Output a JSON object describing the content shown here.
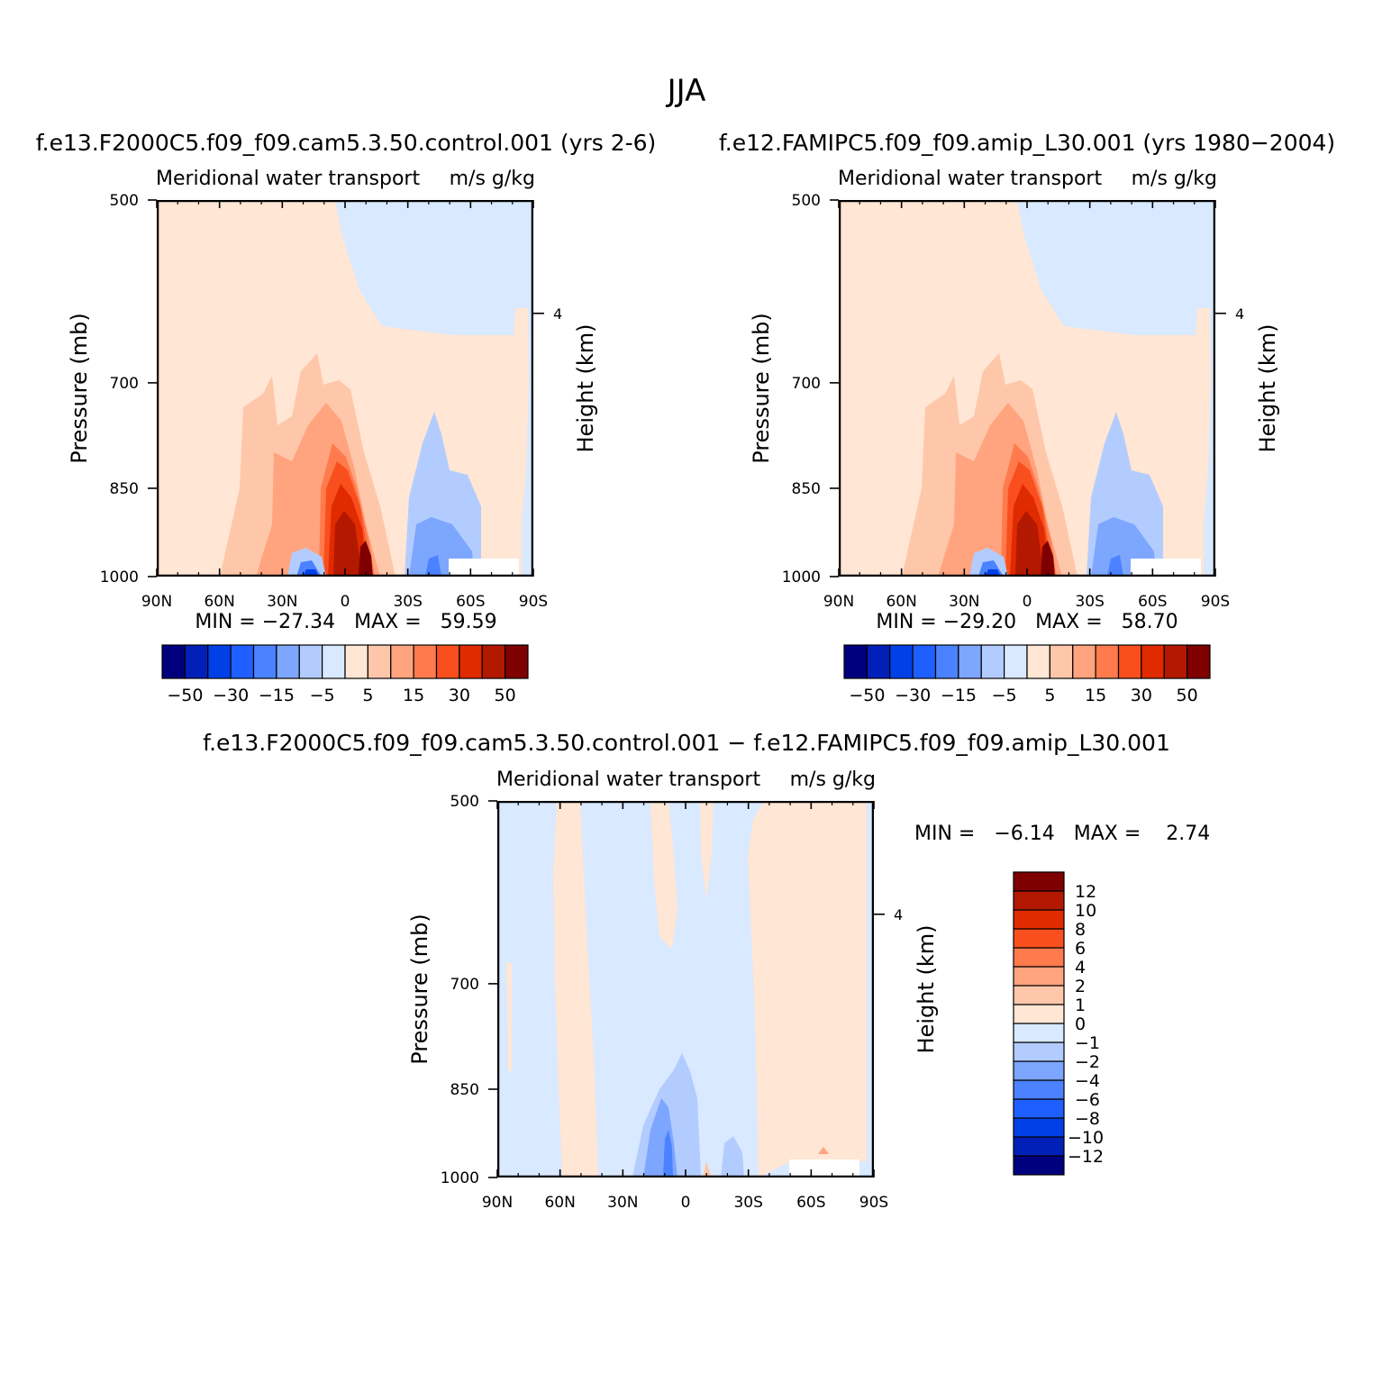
{
  "figure_title": "JJA",
  "chart_data": [
    {
      "type": "heatmap",
      "case_title": "f.e13.F2000C5.f09_f09.cam5.3.50.control.001 (yrs 2-6)",
      "left_string": "Meridional water transport",
      "right_string": "m/s g/kg",
      "xlabel": "",
      "ylabel": "Pressure (mb)",
      "ylabel_right": "Height (km)",
      "x_ticklabels": [
        "90N",
        "60N",
        "30N",
        "0",
        "30S",
        "60S",
        "90S"
      ],
      "x_ticks": [
        90,
        60,
        30,
        0,
        -30,
        -60,
        -90
      ],
      "xlim": [
        90,
        -90
      ],
      "y_ticklabels": [
        "500",
        "700",
        "850",
        "1000"
      ],
      "y_ticks": [
        500,
        700,
        850,
        1000
      ],
      "ylim": [
        1000,
        500
      ],
      "y_right_ticklabels": [
        "4"
      ],
      "stats": "MIN = −27.34   MAX =   59.59",
      "min": -27.34,
      "max": 59.59,
      "colorbar": {
        "orientation": "horizontal",
        "levels": [
          -50,
          -40,
          -30,
          -20,
          -15,
          -10,
          -5,
          0,
          5,
          10,
          15,
          20,
          30,
          40,
          50
        ],
        "labels": [
          "−50",
          "−30",
          "−15",
          "−5",
          "5",
          "15",
          "30",
          "50"
        ],
        "colors": [
          "#00007f",
          "#0020b8",
          "#0040e6",
          "#1f5fff",
          "#4a82ff",
          "#7da6ff",
          "#b3ccff",
          "#d9e9ff",
          "#ffe6d5",
          "#ffc7aa",
          "#ffa47f",
          "#ff7b4d",
          "#f94f1e",
          "#e02a00",
          "#b31900",
          "#7f0000"
        ]
      },
      "dominant_fill": {
        "north": "#ffe6d5",
        "south": "#d9e9ff"
      }
    },
    {
      "type": "heatmap",
      "case_title": "f.e12.FAMIPC5.f09_f09.amip_L30.001 (yrs 1980−2004)",
      "left_string": "Meridional water transport",
      "right_string": "m/s g/kg",
      "xlabel": "",
      "ylabel": "Pressure (mb)",
      "ylabel_right": "Height (km)",
      "x_ticklabels": [
        "90N",
        "60N",
        "30N",
        "0",
        "30S",
        "60S",
        "90S"
      ],
      "x_ticks": [
        90,
        60,
        30,
        0,
        -30,
        -60,
        -90
      ],
      "xlim": [
        90,
        -90
      ],
      "y_ticklabels": [
        "500",
        "700",
        "850",
        "1000"
      ],
      "y_ticks": [
        500,
        700,
        850,
        1000
      ],
      "ylim": [
        1000,
        500
      ],
      "y_right_ticklabels": [
        "4"
      ],
      "stats": "MIN = −29.20   MAX =   58.70",
      "min": -29.2,
      "max": 58.7,
      "colorbar": {
        "orientation": "horizontal",
        "levels": [
          -50,
          -40,
          -30,
          -20,
          -15,
          -10,
          -5,
          0,
          5,
          10,
          15,
          20,
          30,
          40,
          50
        ],
        "labels": [
          "−50",
          "−30",
          "−15",
          "−5",
          "5",
          "15",
          "30",
          "50"
        ],
        "colors": [
          "#00007f",
          "#0020b8",
          "#0040e6",
          "#1f5fff",
          "#4a82ff",
          "#7da6ff",
          "#b3ccff",
          "#d9e9ff",
          "#ffe6d5",
          "#ffc7aa",
          "#ffa47f",
          "#ff7b4d",
          "#f94f1e",
          "#e02a00",
          "#b31900",
          "#7f0000"
        ]
      },
      "dominant_fill": {
        "north": "#ffe6d5",
        "south": "#d9e9ff"
      }
    },
    {
      "type": "heatmap",
      "case_title": "f.e13.F2000C5.f09_f09.cam5.3.50.control.001 − f.e12.FAMIPC5.f09_f09.amip_L30.001",
      "left_string": "Meridional water transport",
      "right_string": "m/s g/kg",
      "xlabel": "",
      "ylabel": "Pressure (mb)",
      "ylabel_right": "Height (km)",
      "x_ticklabels": [
        "90N",
        "60N",
        "30N",
        "0",
        "30S",
        "60S",
        "90S"
      ],
      "x_ticks": [
        90,
        60,
        30,
        0,
        -30,
        -60,
        -90
      ],
      "xlim": [
        90,
        -90
      ],
      "y_ticklabels": [
        "500",
        "700",
        "850",
        "1000"
      ],
      "y_ticks": [
        500,
        700,
        850,
        1000
      ],
      "ylim": [
        1000,
        500
      ],
      "y_right_ticklabels": [
        "4"
      ],
      "stats": "MIN =   −6.14   MAX =    2.74",
      "min": -6.14,
      "max": 2.74,
      "colorbar": {
        "orientation": "vertical",
        "levels": [
          -12,
          -10,
          -8,
          -6,
          -4,
          -2,
          -1,
          0,
          1,
          2,
          4,
          6,
          8,
          10,
          12
        ],
        "labels": [
          "−12",
          "−10",
          "−8",
          "−6",
          "−4",
          "−2",
          "−1",
          "0",
          "1",
          "2",
          "4",
          "6",
          "8",
          "10",
          "12"
        ],
        "colors": [
          "#00007f",
          "#0020b8",
          "#0040e6",
          "#1f5fff",
          "#4a82ff",
          "#7da6ff",
          "#b3ccff",
          "#d9e9ff",
          "#ffe6d5",
          "#ffc7aa",
          "#ffa47f",
          "#ff7b4d",
          "#f94f1e",
          "#e02a00",
          "#b31900",
          "#7f0000"
        ]
      }
    }
  ]
}
